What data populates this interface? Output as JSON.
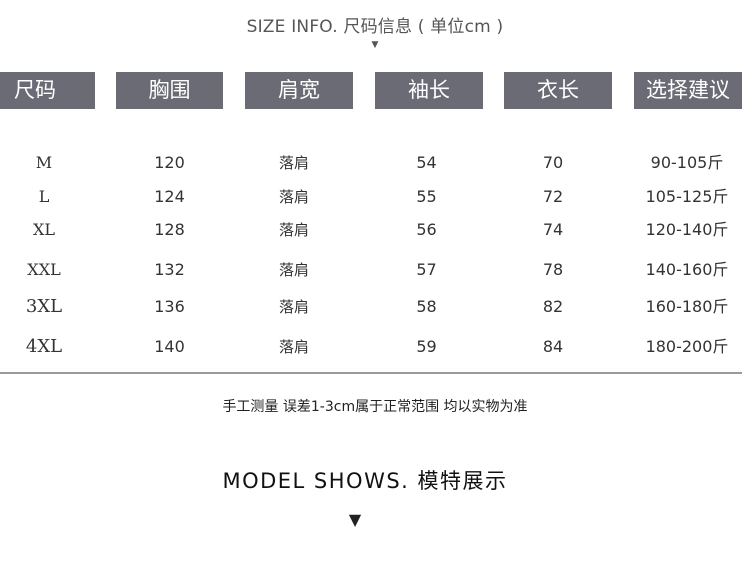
{
  "top_title": "SIZE  INFO. 尺码信息 ( 单位cm )",
  "headers": [
    "尺码",
    "胸围",
    "肩宽",
    "袖长",
    "衣长",
    "选择建议"
  ],
  "rows": [
    {
      "size": "M",
      "chest": "120",
      "shoulder": "落肩",
      "sleeve": "54",
      "length": "70",
      "advice": "90-105斤"
    },
    {
      "size": "L",
      "chest": "124",
      "shoulder": "落肩",
      "sleeve": "55",
      "length": "72",
      "advice": "105-125斤"
    },
    {
      "size": "XL",
      "chest": "128",
      "shoulder": "落肩",
      "sleeve": "56",
      "length": "74",
      "advice": "120-140斤"
    },
    {
      "size": "XXL",
      "chest": "132",
      "shoulder": "落肩",
      "sleeve": "57",
      "length": "78",
      "advice": "140-160斤"
    },
    {
      "size": "3XL",
      "chest": "136",
      "shoulder": "落肩",
      "sleeve": "58",
      "length": "82",
      "advice": "160-180斤"
    },
    {
      "size": "4XL",
      "chest": "140",
      "shoulder": "落肩",
      "sleeve": "59",
      "length": "84",
      "advice": "180-200斤"
    }
  ],
  "note": "手工测量  误差1-3cm属于正常范围 均以实物为准",
  "model_title": "MODEL SHOWS. 模特展示"
}
